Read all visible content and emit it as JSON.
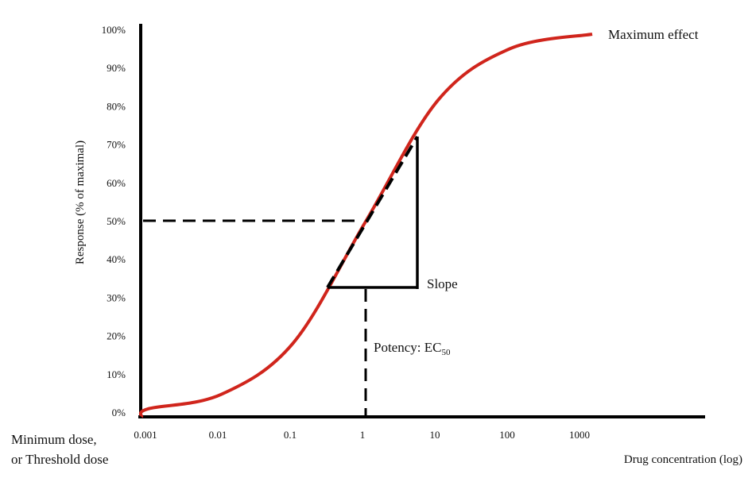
{
  "chart_data": {
    "type": "line",
    "title": "",
    "xlabel": "Drug concentration (log)",
    "ylabel": "Response (% of maximal)",
    "x_scale": "log",
    "x_ticks": [
      "0.001",
      "0.01",
      "0.1",
      "1",
      "10",
      "100",
      "1000"
    ],
    "y_ticks": [
      "0%",
      "10%",
      "20%",
      "30%",
      "40%",
      "50%",
      "60%",
      "70%",
      "80%",
      "90%",
      "100%"
    ],
    "ylim": [
      0,
      100
    ],
    "grid": false,
    "series": [
      {
        "color": "#d0251c",
        "x": [
          0.001,
          0.01,
          0.1,
          1,
          10,
          100,
          1000
        ],
        "y": [
          1.1,
          4.8,
          18.3,
          50,
          81.7,
          95.2,
          98.9
        ]
      }
    ],
    "annotations": {
      "max_effect": "Maximum effect",
      "slope": "Slope",
      "potency": "Potency: EC",
      "potency_sub": "50",
      "min_dose_line1": "Minimum dose,",
      "min_dose_line2": "or Threshold dose"
    }
  }
}
